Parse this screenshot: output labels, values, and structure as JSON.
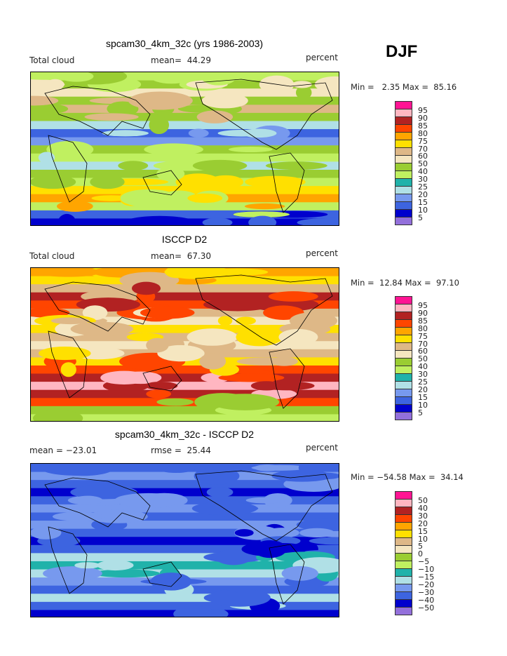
{
  "season": "DJF",
  "panels": [
    {
      "title": "spcam30_4km_32c (yrs 1986-2003)",
      "left": "Total cloud",
      "middle": "mean=  44.29",
      "units": "percent",
      "minmax": "Min =   2.35 Max =  85.16",
      "levels": [
        "95",
        "90",
        "85",
        "80",
        "75",
        "70",
        "60",
        "50",
        "40",
        "30",
        "25",
        "20",
        "15",
        "10",
        "5"
      ]
    },
    {
      "title": "ISCCP D2",
      "left": "Total cloud",
      "middle": "mean=  67.30",
      "units": "percent",
      "minmax": "Min =  12.84 Max =  97.10",
      "levels": [
        "95",
        "90",
        "85",
        "80",
        "75",
        "70",
        "60",
        "50",
        "40",
        "30",
        "25",
        "20",
        "15",
        "10",
        "5"
      ]
    },
    {
      "title": "spcam30_4km_32c - ISCCP D2",
      "left": "mean = −23.01",
      "middle": "rmse =  25.44",
      "units": "percent",
      "minmax": "Min = −54.58 Max =  34.14",
      "levels": [
        "50",
        "40",
        "30",
        "20",
        "15",
        "10",
        "5",
        "0",
        "−5",
        "−10",
        "−15",
        "−20",
        "−30",
        "−40",
        "−50"
      ]
    }
  ],
  "colors": [
    "#ff1493",
    "#ffb6c1",
    "#b22222",
    "#ff4500",
    "#ffa500",
    "#ffe000",
    "#deb887",
    "#f5e6c0",
    "#9acd32",
    "#c0f060",
    "#20b2aa",
    "#b0e0e6",
    "#7799ee",
    "#3d64e0",
    "#0000cd",
    "#9370db"
  ]
}
